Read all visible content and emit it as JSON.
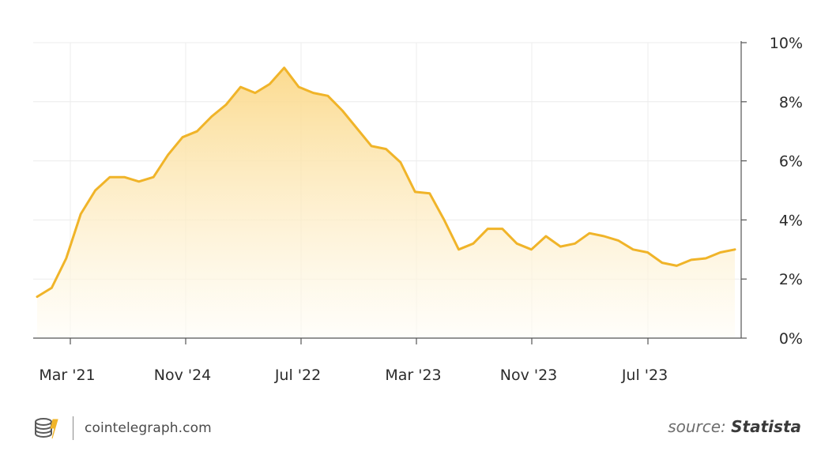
{
  "chart_data": {
    "type": "area",
    "x_ticks": [
      "Mar '21",
      "Nov '24",
      "Jul '22",
      "Mar '23",
      "Nov '23",
      "Jul '23"
    ],
    "y_ticks": [
      "0%",
      "2%",
      "4%",
      "6%",
      "8%",
      "10%"
    ],
    "ylim": [
      0,
      10
    ],
    "y_axis_side": "right",
    "grid": "vertical and horizontal, light",
    "series": [
      {
        "values": [
          1.4,
          1.7,
          2.7,
          4.2,
          5.0,
          5.45,
          5.45,
          5.3,
          5.45,
          6.2,
          6.8,
          7.0,
          7.5,
          7.9,
          8.5,
          8.3,
          8.6,
          9.15,
          8.5,
          8.3,
          8.2,
          7.7,
          7.1,
          6.5,
          6.4,
          5.95,
          4.95,
          4.9,
          4.0,
          3.0,
          3.2,
          3.7,
          3.7,
          3.2,
          3.0,
          3.45,
          3.1,
          3.2,
          3.55,
          3.45,
          3.3,
          3.0,
          2.9,
          2.55,
          2.45,
          2.65,
          2.7,
          2.9,
          3.0
        ]
      }
    ],
    "line_color": "#f0b429",
    "fill_color_top": "#fbd98a",
    "fill_color_bottom": "#fffdf6"
  },
  "footer": {
    "logo_icon": "cointelegraph-coin-stack-icon",
    "brand": "cointelegraph.com",
    "source_prefix": "source: ",
    "source_name": "Statista"
  }
}
